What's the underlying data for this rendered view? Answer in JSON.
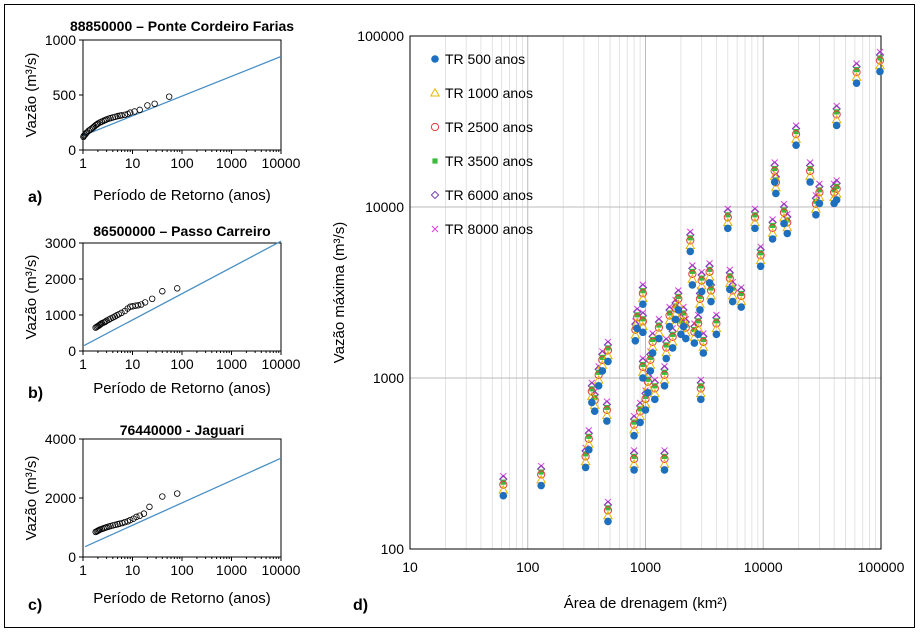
{
  "chart_data": [
    {
      "panel": "a)",
      "type": "scatter",
      "title": "88850000 – Ponte Cordeiro Farias",
      "xlabel": "Período de Retorno (anos)",
      "ylabel": "Vazão (m³/s)",
      "x_scale": "log",
      "xlim": [
        1,
        10000
      ],
      "ylim": [
        0,
        1000
      ],
      "x_ticks": [
        "1",
        "10",
        "100",
        "1000",
        "10000"
      ],
      "y_ticks": [
        "0",
        "500",
        "1000"
      ],
      "line_color": "#4a90c4",
      "fit_line": {
        "x": [
          1,
          10000
        ],
        "y": [
          130,
          850
        ]
      },
      "points": [
        [
          1.02,
          120
        ],
        [
          1.05,
          130
        ],
        [
          1.1,
          140
        ],
        [
          1.15,
          150
        ],
        [
          1.2,
          160
        ],
        [
          1.3,
          175
        ],
        [
          1.4,
          185
        ],
        [
          1.5,
          195
        ],
        [
          1.6,
          205
        ],
        [
          1.7,
          215
        ],
        [
          1.8,
          225
        ],
        [
          1.9,
          232
        ],
        [
          2.0,
          240
        ],
        [
          2.2,
          250
        ],
        [
          2.4,
          258
        ],
        [
          2.6,
          265
        ],
        [
          2.8,
          272
        ],
        [
          3.0,
          278
        ],
        [
          3.3,
          285
        ],
        [
          3.6,
          290
        ],
        [
          4.0,
          296
        ],
        [
          4.5,
          302
        ],
        [
          5.0,
          308
        ],
        [
          5.5,
          312
        ],
        [
          6.0,
          315
        ],
        [
          7.0,
          320
        ],
        [
          8.0,
          328
        ],
        [
          9.0,
          340
        ],
        [
          11,
          350
        ],
        [
          14,
          365
        ],
        [
          20,
          405
        ],
        [
          28,
          420
        ],
        [
          55,
          485
        ]
      ]
    },
    {
      "panel": "b)",
      "type": "scatter",
      "title": "86500000 – Passo Carreiro",
      "xlabel": "Período de Retorno (anos)",
      "ylabel": "Vazão (m³/s)",
      "x_scale": "log",
      "xlim": [
        1,
        10000
      ],
      "ylim": [
        0,
        3000
      ],
      "x_ticks": [
        "1",
        "10",
        "100",
        "1000",
        "10000"
      ],
      "y_ticks": [
        "0",
        "1000",
        "2000",
        "3000"
      ],
      "line_color": "#4a90c4",
      "fit_line": {
        "x": [
          1.05,
          10000
        ],
        "y": [
          150,
          3050
        ]
      },
      "points": [
        [
          1.8,
          650
        ],
        [
          1.9,
          670
        ],
        [
          2.0,
          690
        ],
        [
          2.1,
          710
        ],
        [
          2.2,
          730
        ],
        [
          2.3,
          750
        ],
        [
          2.4,
          770
        ],
        [
          2.6,
          790
        ],
        [
          2.8,
          810
        ],
        [
          3.0,
          840
        ],
        [
          3.3,
          870
        ],
        [
          3.6,
          900
        ],
        [
          4.0,
          930
        ],
        [
          4.4,
          960
        ],
        [
          4.8,
          990
        ],
        [
          5.3,
          1020
        ],
        [
          6.0,
          1060
        ],
        [
          7.0,
          1110
        ],
        [
          8.0,
          1180
        ],
        [
          9.0,
          1230
        ],
        [
          10,
          1240
        ],
        [
          11.5,
          1260
        ],
        [
          13,
          1270
        ],
        [
          15,
          1290
        ],
        [
          18,
          1350
        ],
        [
          25,
          1450
        ],
        [
          40,
          1660
        ],
        [
          80,
          1740
        ]
      ]
    },
    {
      "panel": "c)",
      "type": "scatter",
      "title": "76440000 - Jaguari",
      "xlabel": "Período de Retorno (anos)",
      "ylabel": "Vazão (m³/s)",
      "x_scale": "log",
      "xlim": [
        1,
        10000
      ],
      "ylim": [
        0,
        4000
      ],
      "x_ticks": [
        "1",
        "10",
        "100",
        "1000",
        "10000"
      ],
      "y_ticks": [
        "0",
        "2000",
        "4000"
      ],
      "line_color": "#4a90c4",
      "fit_line": {
        "x": [
          1.1,
          10000
        ],
        "y": [
          350,
          3350
        ]
      },
      "points": [
        [
          1.8,
          850
        ],
        [
          1.9,
          870
        ],
        [
          2.0,
          890
        ],
        [
          2.1,
          910
        ],
        [
          2.2,
          930
        ],
        [
          2.4,
          950
        ],
        [
          2.6,
          970
        ],
        [
          2.8,
          990
        ],
        [
          3.0,
          1010
        ],
        [
          3.3,
          1030
        ],
        [
          3.6,
          1050
        ],
        [
          4.0,
          1070
        ],
        [
          4.5,
          1090
        ],
        [
          5.0,
          1110
        ],
        [
          5.5,
          1130
        ],
        [
          6.2,
          1150
        ],
        [
          7.0,
          1180
        ],
        [
          8.0,
          1210
        ],
        [
          9.0,
          1250
        ],
        [
          10.5,
          1300
        ],
        [
          12,
          1360
        ],
        [
          14,
          1400
        ],
        [
          17,
          1470
        ],
        [
          22,
          1700
        ],
        [
          40,
          2050
        ],
        [
          80,
          2150
        ]
      ]
    },
    {
      "panel": "d)",
      "type": "scatter",
      "title": "",
      "xlabel": "Área de drenagem (km²)",
      "ylabel": "Vazão máxima (m³/s)",
      "x_scale": "log",
      "y_scale": "log",
      "xlim": [
        10,
        100000
      ],
      "ylim": [
        100,
        100000
      ],
      "x_ticks": [
        "10",
        "100",
        "1000",
        "10000",
        "100000"
      ],
      "y_ticks": [
        "100",
        "1000",
        "10000",
        "100000"
      ],
      "legend_position": "top-left",
      "series": [
        {
          "name": "TR 500 anos",
          "marker": "dot",
          "color": "#1f6fbf",
          "factor": 1.0
        },
        {
          "name": "TR 1000 anos",
          "marker": "triangle",
          "color": "#e8b800",
          "factor": 1.08
        },
        {
          "name": "TR 2500 anos",
          "marker": "circle",
          "color": "#e03c3c",
          "factor": 1.16
        },
        {
          "name": "TR 3500 anos",
          "marker": "square",
          "color": "#3cba3c",
          "factor": 1.2
        },
        {
          "name": "TR 6000 anos",
          "marker": "diamond",
          "color": "#7a3fb0",
          "factor": 1.25
        },
        {
          "name": "TR 8000 anos",
          "marker": "x",
          "color": "#e040e0",
          "factor": 1.3
        }
      ],
      "stations": [
        [
          62,
          205
        ],
        [
          130,
          235
        ],
        [
          310,
          300
        ],
        [
          330,
          380
        ],
        [
          350,
          720
        ],
        [
          370,
          640
        ],
        [
          400,
          900
        ],
        [
          430,
          1100
        ],
        [
          470,
          560
        ],
        [
          480,
          1250
        ],
        [
          480,
          145
        ],
        [
          800,
          290
        ],
        [
          800,
          460
        ],
        [
          820,
          1650
        ],
        [
          850,
          1950
        ],
        [
          900,
          550
        ],
        [
          950,
          1000
        ],
        [
          950,
          1850
        ],
        [
          950,
          2700
        ],
        [
          1000,
          650
        ],
        [
          1050,
          820
        ],
        [
          1100,
          1100
        ],
        [
          1150,
          1400
        ],
        [
          1200,
          750
        ],
        [
          1300,
          1700
        ],
        [
          1450,
          290
        ],
        [
          1450,
          900
        ],
        [
          1500,
          1300
        ],
        [
          1600,
          2000
        ],
        [
          1700,
          1500
        ],
        [
          1800,
          2200
        ],
        [
          1900,
          2500
        ],
        [
          2000,
          1800
        ],
        [
          2100,
          2000
        ],
        [
          2200,
          1700
        ],
        [
          2400,
          5500
        ],
        [
          2500,
          3500
        ],
        [
          2600,
          1600
        ],
        [
          2800,
          1800
        ],
        [
          2900,
          2500
        ],
        [
          2950,
          750
        ],
        [
          3000,
          3200
        ],
        [
          3100,
          1400
        ],
        [
          3500,
          3600
        ],
        [
          3600,
          2800
        ],
        [
          4000,
          1800
        ],
        [
          5000,
          7500
        ],
        [
          5200,
          3300
        ],
        [
          5500,
          2800
        ],
        [
          6500,
          2600
        ],
        [
          8500,
          7500
        ],
        [
          9500,
          4500
        ],
        [
          12000,
          6500
        ],
        [
          12500,
          14000
        ],
        [
          12800,
          12000
        ],
        [
          15000,
          8000
        ],
        [
          16000,
          7000
        ],
        [
          19000,
          23000
        ],
        [
          25000,
          14000
        ],
        [
          28000,
          9000
        ],
        [
          30000,
          10500
        ],
        [
          40000,
          10500
        ],
        [
          42000,
          11000
        ],
        [
          42000,
          30000
        ],
        [
          62000,
          53000
        ],
        [
          98000,
          62000
        ]
      ]
    }
  ]
}
